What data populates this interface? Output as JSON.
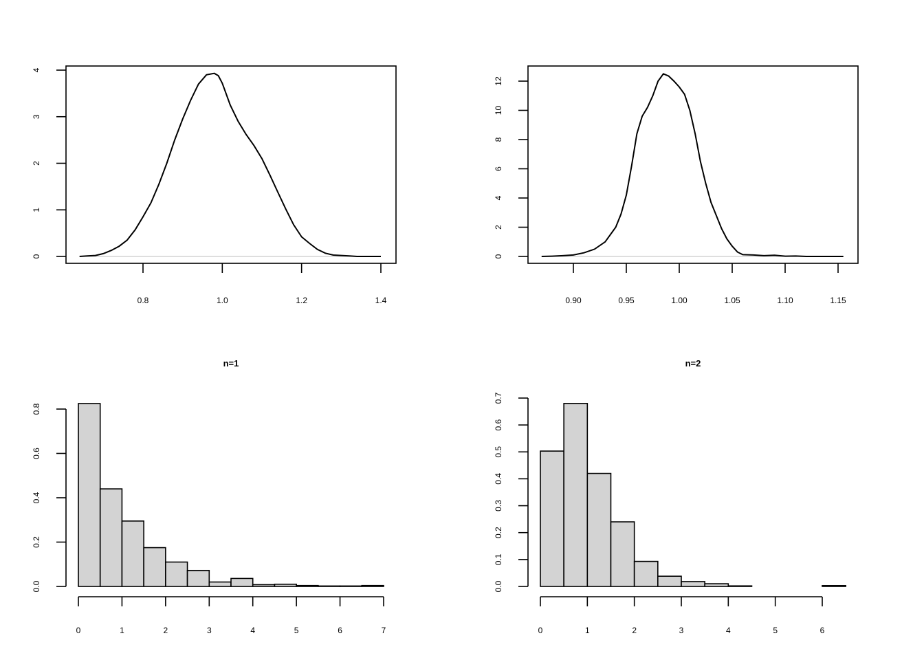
{
  "chart_data": [
    {
      "type": "line",
      "title": "",
      "xlabel": "",
      "ylabel": "",
      "xlim": [
        0.62,
        1.42
      ],
      "ylim": [
        0,
        4
      ],
      "xticks": [
        0.8,
        1.0,
        1.2,
        1.4
      ],
      "xtick_labels": [
        "0.8",
        "1.0",
        "1.2",
        "1.4"
      ],
      "yticks": [
        0,
        1,
        2,
        3,
        4
      ],
      "ytick_labels": [
        "0",
        "1",
        "2",
        "3",
        "4"
      ],
      "baseline": 0,
      "series": [
        {
          "x": [
            0.64,
            0.66,
            0.68,
            0.7,
            0.72,
            0.74,
            0.76,
            0.78,
            0.8,
            0.82,
            0.84,
            0.86,
            0.88,
            0.9,
            0.92,
            0.94,
            0.96,
            0.98,
            0.99,
            1.0,
            1.02,
            1.04,
            1.06,
            1.08,
            1.1,
            1.12,
            1.14,
            1.16,
            1.18,
            1.2,
            1.22,
            1.24,
            1.26,
            1.28,
            1.3,
            1.32,
            1.34,
            1.36,
            1.38,
            1.4
          ],
          "y": [
            0.0,
            0.01,
            0.02,
            0.06,
            0.13,
            0.22,
            0.35,
            0.57,
            0.85,
            1.15,
            1.55,
            2.0,
            2.5,
            2.95,
            3.35,
            3.7,
            3.9,
            3.93,
            3.88,
            3.72,
            3.25,
            2.9,
            2.62,
            2.38,
            2.1,
            1.75,
            1.38,
            1.02,
            0.68,
            0.42,
            0.28,
            0.15,
            0.07,
            0.03,
            0.02,
            0.01,
            0.0,
            0.0,
            0.0,
            0.0
          ]
        }
      ]
    },
    {
      "type": "line",
      "title": "",
      "xlabel": "",
      "ylabel": "",
      "xlim": [
        0.86,
        1.165
      ],
      "ylim": [
        0,
        12.5
      ],
      "xticks": [
        0.9,
        0.95,
        1.0,
        1.05,
        1.1,
        1.15
      ],
      "xtick_labels": [
        "0.90",
        "0.95",
        "1.00",
        "1.05",
        "1.10",
        "1.15"
      ],
      "yticks": [
        0,
        2,
        4,
        6,
        8,
        10,
        12
      ],
      "ytick_labels": [
        "0",
        "2",
        "4",
        "6",
        "8",
        "10",
        "12"
      ],
      "baseline": 0,
      "series": [
        {
          "x": [
            0.87,
            0.88,
            0.89,
            0.9,
            0.91,
            0.92,
            0.93,
            0.94,
            0.945,
            0.95,
            0.955,
            0.96,
            0.965,
            0.97,
            0.975,
            0.98,
            0.985,
            0.99,
            0.995,
            1.0,
            1.005,
            1.01,
            1.015,
            1.02,
            1.025,
            1.03,
            1.035,
            1.04,
            1.045,
            1.05,
            1.055,
            1.06,
            1.07,
            1.08,
            1.09,
            1.1,
            1.11,
            1.12,
            1.13,
            1.14,
            1.155
          ],
          "y": [
            0.0,
            0.02,
            0.05,
            0.1,
            0.25,
            0.5,
            1.0,
            2.0,
            2.9,
            4.2,
            6.2,
            8.4,
            9.6,
            10.2,
            11.0,
            12.0,
            12.5,
            12.35,
            12.0,
            11.6,
            11.1,
            10.0,
            8.4,
            6.5,
            5.0,
            3.7,
            2.8,
            1.9,
            1.2,
            0.7,
            0.3,
            0.12,
            0.1,
            0.05,
            0.08,
            0.02,
            0.03,
            0.0,
            0.0,
            0.0,
            0.0
          ]
        }
      ]
    },
    {
      "type": "bar",
      "title": "n=1",
      "xlabel": "",
      "ylabel": "",
      "bin_width": 0.5,
      "bin_starts": [
        0,
        0.5,
        1,
        1.5,
        2,
        2.5,
        3,
        3.5,
        4,
        4.5,
        5,
        5.5,
        6,
        6.5
      ],
      "values": [
        0.825,
        0.44,
        0.295,
        0.175,
        0.11,
        0.072,
        0.02,
        0.036,
        0.008,
        0.01,
        0.004,
        0.002,
        0.002,
        0.004
      ],
      "xlim": [
        -0.3,
        7.0
      ],
      "ylim": [
        0,
        0.8
      ],
      "xticks": [
        0,
        1,
        2,
        3,
        4,
        5,
        6,
        7
      ],
      "xtick_labels": [
        "0",
        "1",
        "2",
        "3",
        "4",
        "5",
        "6",
        "7"
      ],
      "yticks": [
        0,
        0.2,
        0.4,
        0.6,
        0.8
      ],
      "ytick_labels": [
        "0.0",
        "0.2",
        "0.4",
        "0.6",
        "0.8"
      ],
      "bar_color": "#d3d3d3"
    },
    {
      "type": "bar",
      "title": "n=2",
      "xlabel": "",
      "ylabel": "",
      "bin_width": 0.5,
      "bin_starts": [
        0,
        0.5,
        1,
        1.5,
        2,
        2.5,
        3,
        3.5,
        4,
        4.5,
        5,
        5.5,
        6
      ],
      "values": [
        0.503,
        0.68,
        0.42,
        0.24,
        0.093,
        0.038,
        0.018,
        0.01,
        0.002,
        0.0,
        0.0,
        0.0,
        0.003
      ],
      "xlim": [
        -0.3,
        6.5
      ],
      "ylim": [
        0,
        0.7
      ],
      "xticks": [
        0,
        1,
        2,
        3,
        4,
        5,
        6
      ],
      "xtick_labels": [
        "0",
        "1",
        "2",
        "3",
        "4",
        "5",
        "6"
      ],
      "yticks": [
        0,
        0.1,
        0.2,
        0.3,
        0.4,
        0.5,
        0.6,
        0.7
      ],
      "ytick_labels": [
        "0.0",
        "0.1",
        "0.2",
        "0.3",
        "0.4",
        "0.5",
        "0.6",
        "0.7"
      ],
      "bar_color": "#d3d3d3"
    }
  ]
}
